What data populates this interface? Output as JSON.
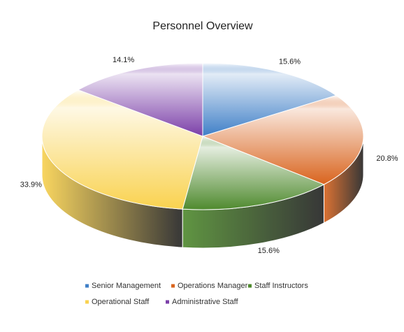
{
  "chart_data": {
    "type": "pie3d",
    "title": "Personnel Overview",
    "categories": [
      "Senior Management",
      "Operations Manager",
      "Staff Instructors",
      "Operational Staff",
      "Administrative Staff"
    ],
    "values": [
      15.6,
      20.8,
      15.6,
      33.9,
      14.1
    ],
    "value_labels": [
      "15.6%",
      "20.8%",
      "15.6%",
      "33.9%",
      "14.1%"
    ],
    "colors": [
      "#3f7fc7",
      "#d9641e",
      "#4f8a2e",
      "#f9d24f",
      "#7b3fa8"
    ],
    "legend": "bottom"
  }
}
